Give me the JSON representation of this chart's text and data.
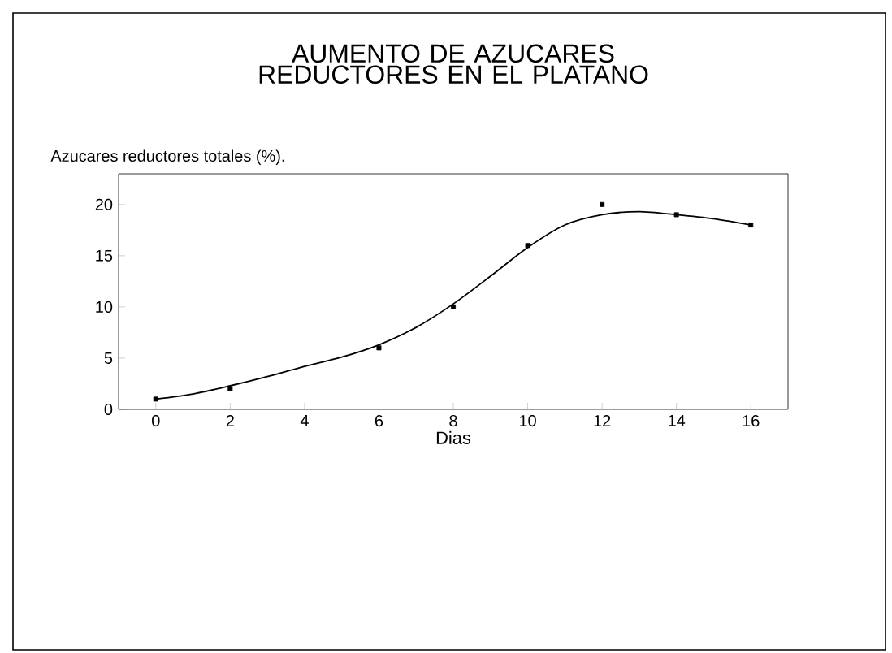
{
  "chart_data": {
    "type": "scatter",
    "title": "AUMENTO DE AZUCARES REDUCTORES EN EL PLATANO",
    "xlabel": "Dias",
    "ylabel": "Azucares reductores totales (%).",
    "x": [
      0,
      2,
      6,
      8,
      10,
      12,
      14,
      16
    ],
    "series": [
      {
        "color": "#000000",
        "marker": "square",
        "values": [
          1,
          2,
          6,
          10,
          16,
          20,
          19,
          18
        ]
      },
      {
        "type": "line",
        "color": "#000000",
        "marker": "none",
        "line_style": "solid",
        "x": [
          0,
          1,
          2,
          3,
          4,
          5,
          6,
          7,
          8,
          9,
          10,
          11,
          12,
          13,
          14,
          15,
          16
        ],
        "values": [
          1,
          1.5,
          2.3,
          3.2,
          4.2,
          5.1,
          6.3,
          8,
          10.3,
          13,
          15.8,
          18,
          19,
          19.3,
          19,
          18.6,
          18
        ]
      }
    ],
    "xlim": [
      -1,
      17
    ],
    "ylim": [
      0,
      23
    ],
    "xticks": [
      0,
      2,
      4,
      6,
      8,
      10,
      12,
      14,
      16
    ],
    "yticks": [
      0,
      5,
      10,
      15,
      20
    ],
    "grid": false
  }
}
